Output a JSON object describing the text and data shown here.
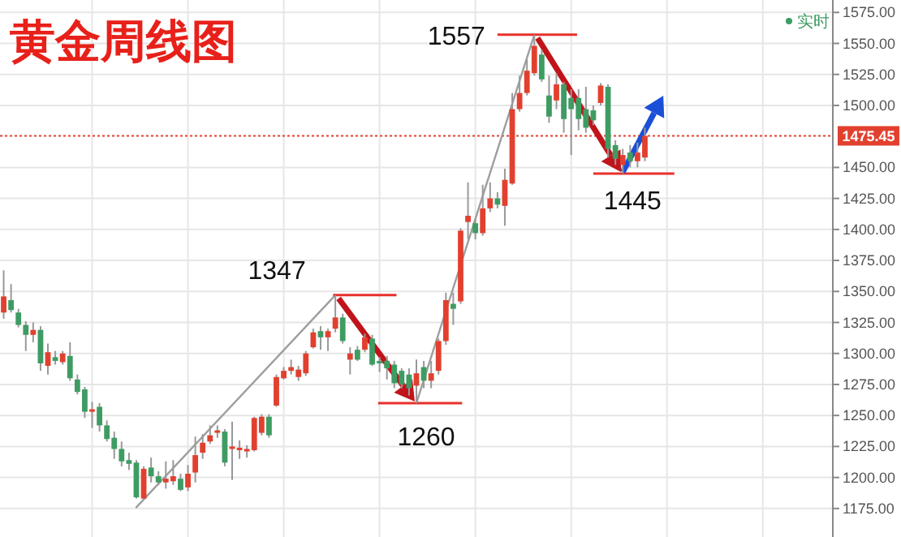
{
  "chart_data": {
    "type": "candlestick",
    "title": "黄金周线图",
    "categories": [
      null,
      null,
      null,
      null,
      null,
      null,
      null,
      null,
      null,
      null,
      null,
      null,
      null,
      null,
      null,
      null,
      null,
      null,
      null,
      null,
      null,
      null,
      null,
      null,
      null,
      null,
      null,
      null,
      null,
      null,
      null,
      null,
      null,
      null,
      null,
      null,
      null,
      null,
      null,
      null,
      null,
      null,
      null,
      null,
      null,
      null,
      null,
      null,
      null,
      null,
      null,
      null,
      null,
      null,
      null,
      null,
      null,
      null,
      null,
      null,
      null,
      null,
      null,
      null,
      null,
      null,
      null,
      null,
      null,
      null,
      null,
      null,
      null,
      null,
      null,
      null,
      null,
      null,
      null,
      null,
      null,
      null,
      null,
      null,
      null,
      null,
      null,
      null,
      null,
      null,
      null,
      null,
      null,
      null,
      null,
      null,
      null,
      null,
      null,
      null,
      null,
      null,
      null,
      null,
      null,
      null,
      null,
      null,
      null,
      null,
      null,
      null,
      null
    ],
    "series": [
      {
        "type": "candlestick",
        "ohlc": [
          [
            1333,
            1367,
            1328,
            1346
          ],
          [
            1343,
            1356,
            1333,
            1335
          ],
          [
            1333,
            1336,
            1321,
            1323
          ],
          [
            1323,
            1326,
            1302,
            1315
          ],
          [
            1315,
            1325,
            1309,
            1319
          ],
          [
            1319,
            1322,
            1286,
            1292
          ],
          [
            1290,
            1308,
            1283,
            1301
          ],
          [
            1297,
            1302,
            1291,
            1294
          ],
          [
            1293,
            1302,
            1291,
            1300
          ],
          [
            1298,
            1309,
            1278,
            1280
          ],
          [
            1279,
            1283,
            1267,
            1269
          ],
          [
            1271,
            1273,
            1248,
            1253
          ],
          [
            1253,
            1261,
            1240,
            1255
          ],
          [
            1257,
            1260,
            1237,
            1242
          ],
          [
            1242,
            1246,
            1229,
            1231
          ],
          [
            1232,
            1237,
            1215,
            1223
          ],
          [
            1223,
            1229,
            1209,
            1213
          ],
          [
            1214,
            1220,
            1206,
            1211
          ],
          [
            1212,
            1214,
            1183,
            1184
          ],
          [
            1183,
            1209,
            1182,
            1207
          ],
          [
            1208,
            1216,
            1196,
            1201
          ],
          [
            1201,
            1205,
            1194,
            1196
          ],
          [
            1196,
            1213,
            1191,
            1199
          ],
          [
            1197,
            1214,
            1194,
            1201
          ],
          [
            1199,
            1203,
            1189,
            1190
          ],
          [
            1192,
            1210,
            1189,
            1203
          ],
          [
            1204,
            1233,
            1196,
            1218
          ],
          [
            1220,
            1235,
            1215,
            1228
          ],
          [
            1229,
            1242,
            1227,
            1234
          ],
          [
            1236,
            1242,
            1232,
            1238
          ],
          [
            1237,
            1239,
            1209,
            1212
          ],
          [
            1223,
            1245,
            1198,
            1225
          ],
          [
            1222,
            1230,
            1215,
            1224
          ],
          [
            1221,
            1226,
            1216,
            1223
          ],
          [
            1222,
            1249,
            1221,
            1248
          ],
          [
            1236,
            1251,
            1234,
            1249
          ],
          [
            1249,
            1251,
            1232,
            1234
          ],
          [
            1258,
            1283,
            1257,
            1281
          ],
          [
            1280,
            1289,
            1279,
            1286
          ],
          [
            1286,
            1295,
            1283,
            1289
          ],
          [
            1281,
            1290,
            1278,
            1287
          ],
          [
            1284,
            1302,
            1282,
            1300
          ],
          [
            1305,
            1320,
            1304,
            1317
          ],
          [
            1318,
            1322,
            1303,
            1313
          ],
          [
            1313,
            1320,
            1302,
            1318
          ],
          [
            1320,
            1347,
            1317,
            1329
          ],
          [
            1329,
            1332,
            1308,
            1310
          ],
          [
            1295,
            1305,
            1283,
            1300
          ],
          [
            1303,
            1306,
            1294,
            1295
          ],
          [
            1303,
            1316,
            1301,
            1313
          ],
          [
            1312,
            1315,
            1290,
            1291
          ],
          [
            1294,
            1297,
            1285,
            1292
          ],
          [
            1294,
            1298,
            1279,
            1288
          ],
          [
            1291,
            1294,
            1272,
            1276
          ],
          [
            1286,
            1288,
            1272,
            1275
          ],
          [
            1283,
            1288,
            1266,
            1272
          ],
          [
            1274,
            1295,
            1260,
            1284
          ],
          [
            1289,
            1294,
            1272,
            1278
          ],
          [
            1278,
            1294,
            1272,
            1284
          ],
          [
            1286,
            1312,
            1283,
            1310
          ],
          [
            1310,
            1349,
            1307,
            1343
          ],
          [
            1340,
            1349,
            1323,
            1336
          ],
          [
            1342,
            1401,
            1340,
            1399
          ],
          [
            1406,
            1438,
            1392,
            1411
          ],
          [
            1405,
            1408,
            1392,
            1397
          ],
          [
            1397,
            1436,
            1395,
            1417
          ],
          [
            1417,
            1438,
            1414,
            1425
          ],
          [
            1425,
            1430,
            1417,
            1420
          ],
          [
            1419,
            1449,
            1403,
            1440
          ],
          [
            1437,
            1510,
            1436,
            1497
          ],
          [
            1497,
            1524,
            1495,
            1510
          ],
          [
            1510,
            1537,
            1508,
            1528
          ],
          [
            1526,
            1557,
            1524,
            1548
          ],
          [
            1541,
            1545,
            1519,
            1521
          ],
          [
            1508,
            1524,
            1486,
            1491
          ],
          [
            1504,
            1526,
            1497,
            1517
          ],
          [
            1517,
            1519,
            1478,
            1489
          ],
          [
            1506,
            1513,
            1460,
            1497
          ],
          [
            1506,
            1513,
            1480,
            1489
          ],
          [
            1497,
            1515,
            1478,
            1482
          ],
          [
            1496,
            1500,
            1484,
            1488
          ],
          [
            1502,
            1518,
            1500,
            1516
          ],
          [
            1515,
            1517,
            1458,
            1465
          ],
          [
            1468,
            1472,
            1452,
            1457
          ],
          [
            1452,
            1465,
            1445,
            1460
          ],
          [
            1462,
            1468,
            1450,
            1455
          ],
          [
            1455,
            1470,
            1450,
            1462
          ],
          [
            1458,
            1482,
            1455,
            1475.45
          ],
          null,
          null,
          null,
          null,
          null,
          null,
          null,
          null,
          null,
          null,
          null,
          null,
          null,
          null,
          null,
          null,
          null,
          null,
          null,
          null,
          null,
          null,
          null,
          null,
          null
        ],
        "colors": [
          "#e2402f",
          "#3e9c63",
          "#3e9c63",
          "#3e9c63",
          "#e2402f",
          "#3e9c63",
          "#e2402f",
          "#3e9c63",
          "#e2402f",
          "#3e9c63",
          "#3e9c63",
          "#3e9c63",
          "#e2402f",
          "#3e9c63",
          "#3e9c63",
          "#3e9c63",
          "#3e9c63",
          "#3e9c63",
          "#3e9c63",
          "#e2402f",
          "#3e9c63",
          "#3e9c63",
          "#e2402f",
          "#e2402f",
          "#3e9c63",
          "#e2402f",
          "#e2402f",
          "#e2402f",
          "#e2402f",
          "#e2402f",
          "#3e9c63",
          "#e2402f",
          "#e2402f",
          "#e2402f",
          "#e2402f",
          "#e2402f",
          "#3e9c63",
          "#e2402f",
          "#e2402f",
          "#e2402f",
          "#e2402f",
          "#e2402f",
          "#e2402f",
          "#3e9c63",
          "#e2402f",
          "#e2402f",
          "#3e9c63",
          "#e2402f",
          "#3e9c63",
          "#e2402f",
          "#3e9c63",
          "#3e9c63",
          "#3e9c63",
          "#3e9c63",
          "#3e9c63",
          "#3e9c63",
          "#e2402f",
          "#3e9c63",
          "#e2402f",
          "#e2402f",
          "#e2402f",
          "#3e9c63",
          "#e2402f",
          "#e2402f",
          "#3e9c63",
          "#e2402f",
          "#e2402f",
          "#3e9c63",
          "#e2402f",
          "#e2402f",
          "#e2402f",
          "#e2402f",
          "#e2402f",
          "#3e9c63",
          "#3e9c63",
          "#e2402f",
          "#3e9c63",
          "#3e9c63",
          "#3e9c63",
          "#3e9c63",
          "#3e9c63",
          "#e2402f",
          "#3e9c63",
          "#3e9c63",
          "#e2402f",
          "#3e9c63",
          "#e2402f",
          "#e2402f",
          null,
          null,
          null,
          null,
          null,
          null,
          null,
          null,
          null,
          null,
          null,
          null,
          null,
          null,
          null,
          null,
          null,
          null,
          null,
          null,
          null,
          null,
          null,
          null,
          null
        ]
      },
      {
        "type": "line",
        "color": "#9e9e9e",
        "values": [
          null,
          null,
          null,
          null,
          null,
          null,
          null,
          null,
          null,
          null,
          null,
          null,
          null,
          null,
          null,
          null,
          null,
          null,
          1176,
          null,
          null,
          null,
          null,
          null,
          null,
          null,
          null,
          null,
          null,
          null,
          null,
          null,
          null,
          null,
          null,
          null,
          null,
          null,
          null,
          null,
          null,
          null,
          null,
          null,
          null,
          1347,
          null,
          null,
          null,
          null,
          null,
          null,
          null,
          null,
          null,
          null,
          null,
          null,
          null,
          null,
          null,
          null,
          null,
          null,
          null,
          null,
          null,
          null,
          null,
          null,
          null,
          null,
          null,
          null,
          null,
          null,
          null,
          null,
          null,
          null,
          null,
          null,
          null,
          null,
          null,
          null,
          null,
          null,
          null,
          null,
          null,
          null,
          null,
          null,
          null,
          null,
          null,
          null,
          null,
          null,
          null,
          null,
          null,
          null,
          null,
          null,
          null,
          null,
          null,
          null,
          null,
          null,
          null
        ]
      },
      {
        "type": "line",
        "color": "#9e9e9e",
        "values": [
          null,
          null,
          null,
          null,
          null,
          null,
          null,
          null,
          null,
          null,
          null,
          null,
          null,
          null,
          null,
          null,
          null,
          null,
          null,
          null,
          null,
          null,
          null,
          null,
          null,
          null,
          null,
          null,
          null,
          null,
          null,
          null,
          null,
          null,
          null,
          null,
          null,
          null,
          null,
          null,
          null,
          null,
          null,
          null,
          null,
          null,
          null,
          null,
          null,
          null,
          null,
          null,
          null,
          null,
          null,
          null,
          1260,
          null,
          null,
          null,
          null,
          null,
          null,
          null,
          null,
          null,
          null,
          null,
          null,
          null,
          null,
          null,
          1557,
          null,
          null,
          null,
          null,
          null,
          null,
          null,
          null,
          null,
          null,
          null,
          null,
          null,
          null,
          null,
          null,
          null,
          null,
          null,
          null,
          null,
          null,
          null,
          null,
          null,
          null,
          null,
          null,
          null,
          null,
          null,
          null,
          null,
          null,
          null,
          null,
          null,
          null,
          null,
          null
        ]
      }
    ],
    "ylim": [
      1152,
      1585
    ],
    "yticks": [
      {
        "value": 1175,
        "label": "1175.00"
      },
      {
        "value": 1200,
        "label": "1200.00"
      },
      {
        "value": 1225,
        "label": "1225.00"
      },
      {
        "value": 1250,
        "label": "1250.00"
      },
      {
        "value": 1275,
        "label": "1275.00"
      },
      {
        "value": 1300,
        "label": "1300.00"
      },
      {
        "value": 1325,
        "label": "1325.00"
      },
      {
        "value": 1350,
        "label": "1350.00"
      },
      {
        "value": 1375,
        "label": "1375.00"
      },
      {
        "value": 1400,
        "label": "1400.00"
      },
      {
        "value": 1425,
        "label": "1425.00"
      },
      {
        "value": 1450,
        "label": "1450.00"
      },
      {
        "value": 1500,
        "label": "1500.00"
      },
      {
        "value": 1525,
        "label": "1525.00"
      },
      {
        "value": 1550,
        "label": "1550.00"
      },
      {
        "value": 1575,
        "label": "1575.00"
      }
    ],
    "ref_lines": [
      {
        "axis": "y",
        "value": 1475.45,
        "label": "1475.45",
        "color": "#e2402f",
        "line_style": "dotted"
      }
    ],
    "annotations": [
      "1347",
      "1260",
      "1557",
      "1445",
      "实时"
    ],
    "grid": true,
    "tick_labels": "y"
  }
}
